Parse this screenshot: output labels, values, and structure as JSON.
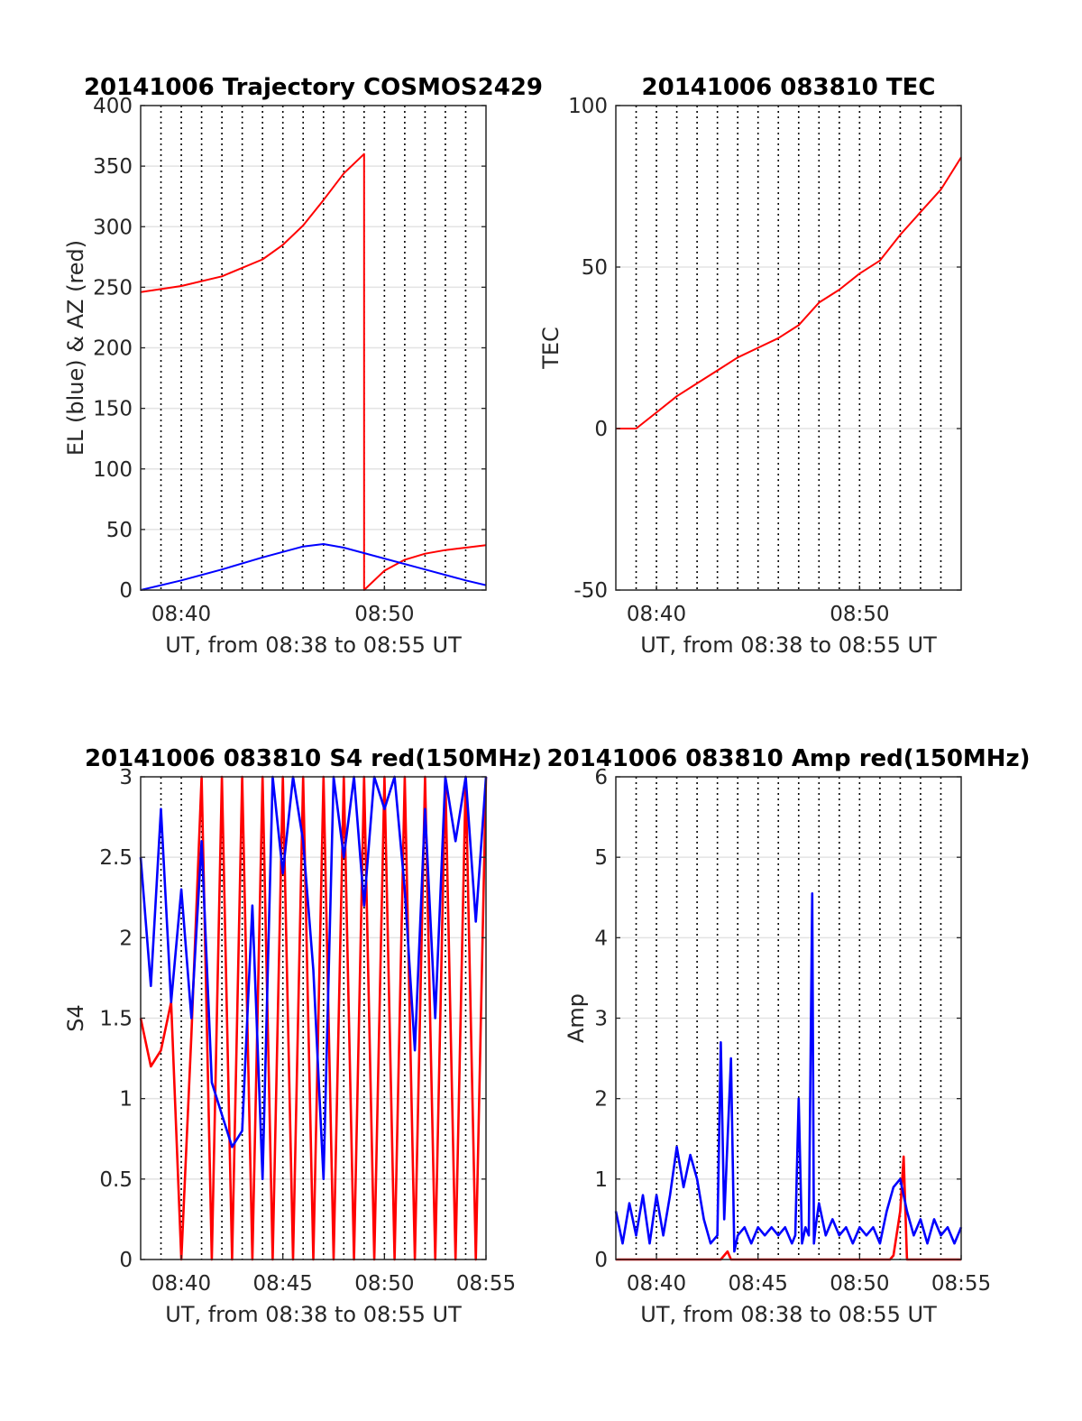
{
  "chart_data": [
    {
      "type": "line",
      "title": "20141006 Trajectory COSMOS2429",
      "xlabel": "UT, from 08:38 to 08:55 UT",
      "ylabel": "EL (blue) & AZ (red)",
      "xlim": [
        "08:38",
        "08:55"
      ],
      "ylim": [
        0,
        400
      ],
      "xticks": [
        "08:40",
        "08:50"
      ],
      "yticks": [
        0,
        50,
        100,
        150,
        200,
        250,
        300,
        350,
        400
      ],
      "grid": true,
      "series": [
        {
          "color": "#ff0000",
          "x": [
            "08:38:00",
            "08:40:00",
            "08:42:00",
            "08:44:00",
            "08:45:00",
            "08:46:00",
            "08:47:00",
            "08:48:00",
            "08:49:00",
            "08:49:00",
            "08:50:00",
            "08:51:00",
            "08:52:00",
            "08:53:00",
            "08:54:00",
            "08:55:00"
          ],
          "values": [
            246,
            251,
            259,
            273,
            285,
            301,
            322,
            344,
            360,
            0,
            16,
            25,
            30,
            33,
            35,
            37
          ]
        },
        {
          "color": "#0000ff",
          "x": [
            "08:38:00",
            "08:40:00",
            "08:42:00",
            "08:44:00",
            "08:46:00",
            "08:47:00",
            "08:48:00",
            "08:50:00",
            "08:52:00",
            "08:54:00",
            "08:55:00"
          ],
          "values": [
            0,
            8,
            17,
            27,
            36,
            38,
            35,
            26,
            17,
            8,
            4
          ]
        }
      ]
    },
    {
      "type": "line",
      "title": "20141006 083810 TEC",
      "xlabel": "UT, from 08:38 to 08:55 UT",
      "ylabel": "TEC",
      "xlim": [
        "08:38",
        "08:55"
      ],
      "ylim": [
        -50,
        100
      ],
      "xticks": [
        "08:40",
        "08:50"
      ],
      "yticks": [
        -50,
        0,
        50,
        100
      ],
      "grid": true,
      "series": [
        {
          "color": "#ff0000",
          "x": [
            "08:38:00",
            "08:39:00",
            "08:40:00",
            "08:41:00",
            "08:42:00",
            "08:43:00",
            "08:44:00",
            "08:45:00",
            "08:46:00",
            "08:47:00",
            "08:48:00",
            "08:49:00",
            "08:50:00",
            "08:51:00",
            "08:52:00",
            "08:53:00",
            "08:54:00",
            "08:55:00"
          ],
          "values": [
            0,
            0,
            5,
            10,
            14,
            18,
            22,
            25,
            28,
            32,
            39,
            43,
            48,
            52,
            60,
            67,
            74,
            84
          ]
        }
      ]
    },
    {
      "type": "line",
      "title": "20141006 083810 S4 red(150MHz)",
      "xlabel": "UT, from 08:38 to 08:55 UT",
      "ylabel": "S4",
      "xlim": [
        "08:38",
        "08:55"
      ],
      "ylim": [
        0,
        3
      ],
      "xticks": [
        "08:40",
        "08:45",
        "08:50",
        "08:55"
      ],
      "yticks": [
        0,
        0.5,
        1,
        1.5,
        2,
        2.5,
        3
      ],
      "grid": true,
      "series": [
        {
          "color": "#ff0000",
          "x": [
            "08:38:00",
            "08:38:30",
            "08:39:00",
            "08:39:30",
            "08:40:00",
            "08:40:30",
            "08:41:00",
            "08:41:30",
            "08:42:00",
            "08:42:30",
            "08:43:00",
            "08:43:30",
            "08:44:00",
            "08:44:30",
            "08:45:00",
            "08:45:30",
            "08:46:00",
            "08:46:30",
            "08:47:00",
            "08:47:30",
            "08:48:00",
            "08:48:30",
            "08:49:00",
            "08:49:30",
            "08:50:00",
            "08:50:30",
            "08:51:00",
            "08:51:30",
            "08:52:00",
            "08:52:30",
            "08:53:00",
            "08:53:30",
            "08:54:00",
            "08:54:30",
            "08:55:00"
          ],
          "values": [
            1.5,
            1.2,
            1.3,
            1.6,
            0.0,
            1.4,
            3.0,
            0.0,
            3.0,
            0.0,
            3.0,
            0.0,
            3.0,
            0.0,
            3.0,
            0.0,
            3.0,
            0.0,
            3.0,
            0.0,
            3.0,
            0.0,
            3.0,
            0.0,
            3.0,
            0.0,
            3.0,
            0.0,
            3.0,
            0.0,
            3.0,
            0.0,
            3.0,
            0.0,
            3.0
          ]
        },
        {
          "color": "#0000ff",
          "x": [
            "08:38:00",
            "08:38:30",
            "08:39:00",
            "08:39:30",
            "08:40:00",
            "08:40:30",
            "08:41:00",
            "08:41:30",
            "08:42:00",
            "08:42:30",
            "08:43:00",
            "08:43:30",
            "08:44:00",
            "08:44:30",
            "08:45:00",
            "08:45:30",
            "08:46:00",
            "08:46:30",
            "08:47:00",
            "08:47:30",
            "08:48:00",
            "08:48:30",
            "08:49:00",
            "08:49:30",
            "08:50:00",
            "08:50:30",
            "08:51:00",
            "08:51:30",
            "08:52:00",
            "08:52:30",
            "08:53:00",
            "08:53:30",
            "08:54:00",
            "08:54:30",
            "08:55:00"
          ],
          "values": [
            2.5,
            1.7,
            2.8,
            1.6,
            2.3,
            1.5,
            2.6,
            1.1,
            0.9,
            0.7,
            0.8,
            2.2,
            0.5,
            3.0,
            2.4,
            3.0,
            2.6,
            1.8,
            0.5,
            3.0,
            2.5,
            3.0,
            2.2,
            3.0,
            2.8,
            3.0,
            2.3,
            1.3,
            2.8,
            1.5,
            3.0,
            2.6,
            3.0,
            2.1,
            3.0
          ]
        }
      ]
    },
    {
      "type": "line",
      "title": "20141006 083810 Amp red(150MHz)",
      "xlabel": "UT, from 08:38 to 08:55 UT",
      "ylabel": "Amp",
      "xlim": [
        "08:38",
        "08:55"
      ],
      "ylim": [
        0,
        6
      ],
      "xticks": [
        "08:40",
        "08:45",
        "08:50",
        "08:55"
      ],
      "yticks": [
        0,
        1,
        2,
        3,
        4,
        5,
        6
      ],
      "grid": true,
      "series": [
        {
          "color": "#ff0000",
          "x": [
            "08:38:00",
            "08:43:10",
            "08:43:20",
            "08:43:30",
            "08:43:40",
            "08:51:30",
            "08:51:40",
            "08:52:00",
            "08:52:10",
            "08:52:20",
            "08:55:00"
          ],
          "values": [
            0,
            0,
            0.05,
            0.1,
            0,
            0,
            0.05,
            0.6,
            1.28,
            0,
            0
          ]
        },
        {
          "color": "#0000ff",
          "x": [
            "08:38:00",
            "08:38:20",
            "08:38:40",
            "08:39:00",
            "08:39:20",
            "08:39:40",
            "08:40:00",
            "08:40:20",
            "08:40:40",
            "08:41:00",
            "08:41:20",
            "08:41:40",
            "08:42:00",
            "08:42:20",
            "08:42:40",
            "08:43:00",
            "08:43:10",
            "08:43:20",
            "08:43:40",
            "08:43:50",
            "08:44:00",
            "08:44:20",
            "08:44:40",
            "08:45:00",
            "08:45:20",
            "08:45:40",
            "08:46:00",
            "08:46:20",
            "08:46:40",
            "08:46:50",
            "08:47:00",
            "08:47:10",
            "08:47:20",
            "08:47:30",
            "08:47:40",
            "08:47:45",
            "08:47:50",
            "08:48:00",
            "08:48:20",
            "08:48:40",
            "08:49:00",
            "08:49:20",
            "08:49:40",
            "08:50:00",
            "08:50:20",
            "08:50:40",
            "08:51:00",
            "08:51:20",
            "08:51:40",
            "08:52:00",
            "08:52:20",
            "08:52:40",
            "08:53:00",
            "08:53:20",
            "08:53:40",
            "08:54:00",
            "08:54:20",
            "08:54:40",
            "08:55:00"
          ],
          "values": [
            0.6,
            0.2,
            0.7,
            0.3,
            0.8,
            0.2,
            0.8,
            0.3,
            0.8,
            1.4,
            0.9,
            1.3,
            1.0,
            0.5,
            0.2,
            0.3,
            2.7,
            0.5,
            2.5,
            0.1,
            0.3,
            0.4,
            0.2,
            0.4,
            0.3,
            0.4,
            0.3,
            0.4,
            0.2,
            0.3,
            2.0,
            0.2,
            0.4,
            0.3,
            4.55,
            0.2,
            0.4,
            0.7,
            0.3,
            0.5,
            0.3,
            0.4,
            0.2,
            0.4,
            0.3,
            0.4,
            0.2,
            0.6,
            0.9,
            1.0,
            0.6,
            0.3,
            0.5,
            0.2,
            0.5,
            0.3,
            0.4,
            0.2,
            0.4
          ]
        }
      ]
    }
  ]
}
